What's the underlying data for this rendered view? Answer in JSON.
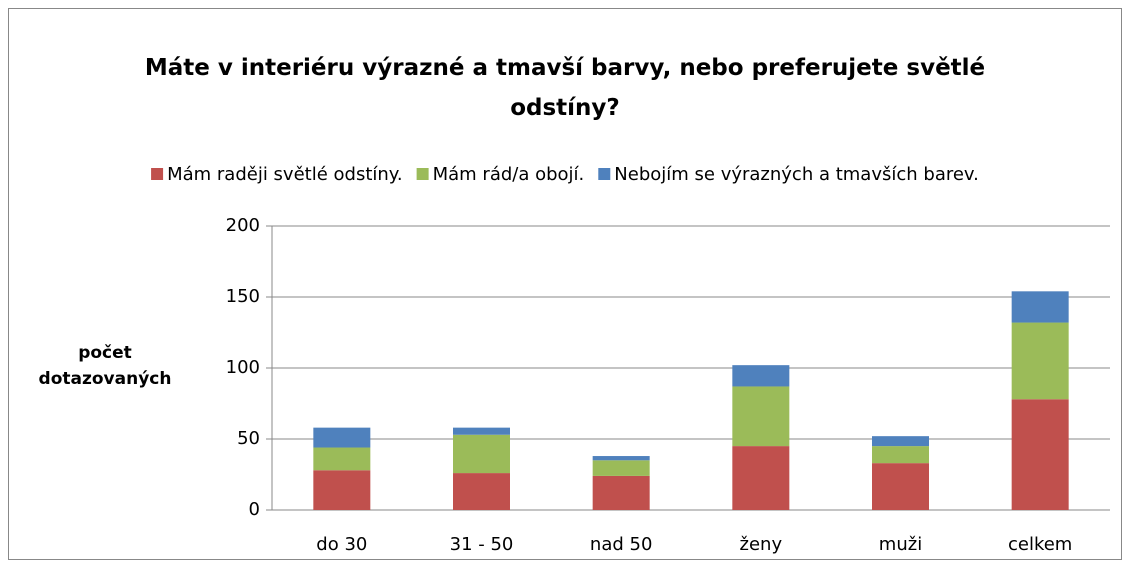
{
  "chart_data": {
    "type": "stacked_bar",
    "title": "Máte v interiéru výrazné a tmavší barvy, nebo preferujete světlé odstíny?",
    "y_label": "počet dotazovaných",
    "categories": [
      "do 30",
      "31 - 50",
      "nad 50",
      "ženy",
      "muži",
      "celkem"
    ],
    "series": [
      {
        "name": "Mám raději světlé odstíny.",
        "color": "#c0504d",
        "values": [
          28,
          26,
          24,
          45,
          33,
          78
        ]
      },
      {
        "name": "Mám rád/a obojí.",
        "color": "#9bbb59",
        "values": [
          16,
          27,
          11,
          42,
          12,
          54
        ]
      },
      {
        "name": "Nebojím se výrazných a tmavších barev.",
        "color": "#4f81bd",
        "values": [
          14,
          5,
          3,
          15,
          7,
          22
        ]
      }
    ],
    "ylim": [
      0,
      200
    ],
    "yticks": [
      0,
      50,
      100,
      150,
      200
    ],
    "grid": true,
    "legend": "top"
  }
}
